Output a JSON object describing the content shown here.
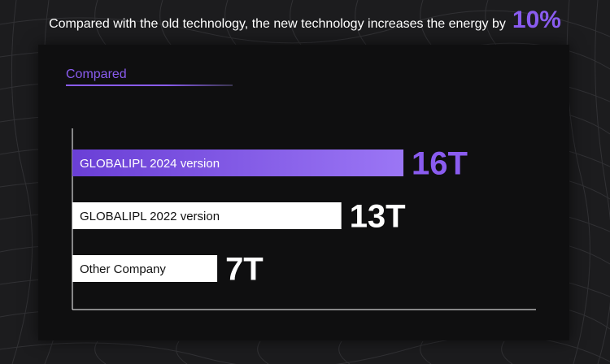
{
  "headline": {
    "text": "Compared with the old technology, the new technology increases the energy by",
    "value": "10%"
  },
  "section": {
    "title": "Compared"
  },
  "colors": {
    "accent": "#8a5cf0",
    "accent_light": "#9b76f5",
    "bar_default": "#ffffff",
    "panel_bg": "#0f0f10"
  },
  "chart_data": {
    "type": "bar",
    "orientation": "horizontal",
    "title": "",
    "xlabel": "",
    "ylabel": "",
    "xlim": [
      0,
      16
    ],
    "grid": false,
    "legend": "none",
    "categories": [
      "GLOBALIPL 2024 version",
      "GLOBALIPL 2022 version",
      "Other Company"
    ],
    "values": [
      16,
      13,
      7
    ],
    "value_labels": [
      "16T",
      "13T",
      "7T"
    ],
    "highlight": [
      true,
      false,
      false
    ]
  }
}
